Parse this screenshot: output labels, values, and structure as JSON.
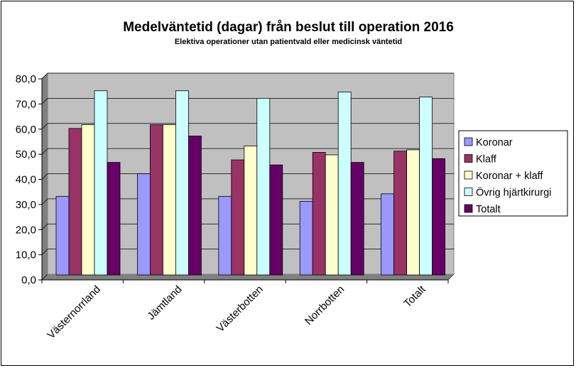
{
  "chart_data": {
    "type": "bar",
    "title": "Medelväntetid (dagar) från beslut till operation 2016",
    "subtitle": "Elektiva operationer utan patientvald eller medicinsk väntetid",
    "xlabel": "",
    "ylabel": "",
    "ylim": [
      0,
      80
    ],
    "yticks": [
      0,
      10,
      20,
      30,
      40,
      50,
      60,
      70,
      80
    ],
    "ytick_labels": [
      "0,0",
      "10,0",
      "20,0",
      "30,0",
      "40,0",
      "50,0",
      "60,0",
      "70,0",
      "80,0"
    ],
    "grid": true,
    "legend_position": "right",
    "categories": [
      "Västernorrland",
      "Jämtland",
      "Västerbotten",
      "Norrbotten",
      "Totalt"
    ],
    "series": [
      {
        "name": "Koronar",
        "color": "#9999FF",
        "values": [
          31,
          40,
          31,
          29,
          32
        ]
      },
      {
        "name": "Klaff",
        "color": "#993366",
        "values": [
          58,
          59.5,
          45.5,
          48.5,
          49
        ]
      },
      {
        "name": "Koronar + klaff",
        "color": "#FFFFCC",
        "values": [
          59.5,
          59.5,
          51,
          47.5,
          49.5
        ]
      },
      {
        "name": "Övrig hjärtkirurgi",
        "color": "#CCFFFF",
        "values": [
          73,
          73,
          70,
          72.5,
          70.5
        ]
      },
      {
        "name": "Totalt",
        "color": "#660066",
        "values": [
          44.5,
          55,
          43.5,
          44.5,
          46
        ]
      }
    ],
    "plot_background": "#C0C0C0"
  }
}
